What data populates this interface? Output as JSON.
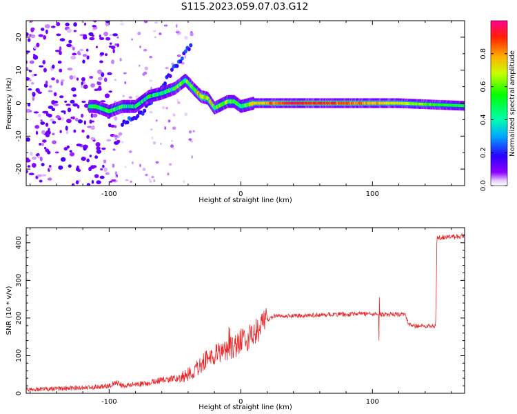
{
  "figure_title": "S115.2023.059.07.03.G12",
  "chart_data": [
    {
      "type": "heatmap",
      "title": "",
      "xlabel": "Height of straight line (km)",
      "ylabel": "Frequency (Hz)",
      "xlim": [
        -163,
        170
      ],
      "ylim": [
        -25,
        25
      ],
      "xticks": [
        -100,
        0,
        100
      ],
      "xtick_labels": [
        "-100",
        "0",
        "100"
      ],
      "yticks": [
        -20,
        -10,
        0,
        10,
        20
      ],
      "ytick_labels": [
        "-20",
        "-10",
        "0",
        "10",
        "20"
      ],
      "colorbar": {
        "label": "Normalized spectral amplitude",
        "range": [
          0,
          1
        ],
        "ticks": [
          0.0,
          0.2,
          0.4,
          0.6,
          0.8
        ],
        "tick_labels": [
          "0.0",
          "0.2",
          "0.4",
          "0.6",
          "0.8"
        ],
        "colormap": "gist_rainbow (white at 0)"
      },
      "ridge": {
        "x": [
          -110,
          -100,
          -90,
          -80,
          -70,
          -60,
          -50,
          -42,
          -35,
          -30,
          -25,
          -20,
          -15,
          -10,
          -5,
          0,
          5,
          10,
          40,
          80,
          120,
          150,
          170
        ],
        "y": [
          -1,
          -2.5,
          -1,
          -1,
          2,
          3,
          4.5,
          7,
          4,
          2,
          1.5,
          -1.5,
          -0.5,
          0.5,
          0.5,
          -1,
          -0.5,
          0,
          0,
          0,
          0,
          -0.5,
          -0.8
        ],
        "amplitude": [
          0.5,
          0.45,
          0.5,
          0.35,
          0.4,
          0.45,
          0.5,
          0.55,
          0.6,
          0.8,
          0.65,
          0.6,
          0.5,
          0.55,
          0.5,
          0.5,
          0.55,
          0.7,
          0.95,
          0.85,
          0.7,
          0.55,
          0.5
        ]
      },
      "upper_branch": {
        "x": [
          -90,
          -75,
          -60,
          -50,
          -42,
          -38
        ],
        "y": [
          -6,
          -3,
          5,
          11,
          15,
          18
        ]
      }
    },
    {
      "type": "line",
      "title": "",
      "xlabel": "Height of straight line (km)",
      "ylabel": "SNR (10 * v/v)",
      "xlim": [
        -163,
        170
      ],
      "ylim": [
        0,
        440
      ],
      "xticks": [
        -100,
        0,
        100
      ],
      "xtick_labels": [
        "-100",
        "0",
        "100"
      ],
      "yticks": [
        0,
        100,
        200,
        300,
        400
      ],
      "ytick_labels": [
        "0",
        "100",
        "200",
        "300",
        "400"
      ],
      "series": [
        {
          "color": "#e8282a",
          "x": [
            -163,
            -140,
            -120,
            -100,
            -95,
            -90,
            -75,
            -60,
            -45,
            -35,
            -25,
            -15,
            -5,
            0,
            5,
            10,
            15,
            20,
            25,
            30,
            40,
            60,
            80,
            90,
            100,
            103,
            106,
            110,
            125,
            127,
            130,
            140,
            148,
            149,
            150,
            160,
            170
          ],
          "y": [
            10,
            12,
            15,
            20,
            30,
            20,
            25,
            35,
            40,
            60,
            95,
            110,
            125,
            140,
            145,
            155,
            175,
            195,
            205,
            205,
            205,
            208,
            210,
            212,
            210,
            210,
            210,
            210,
            210,
            185,
            180,
            178,
            178,
            415,
            415,
            415,
            418
          ]
        }
      ]
    }
  ]
}
